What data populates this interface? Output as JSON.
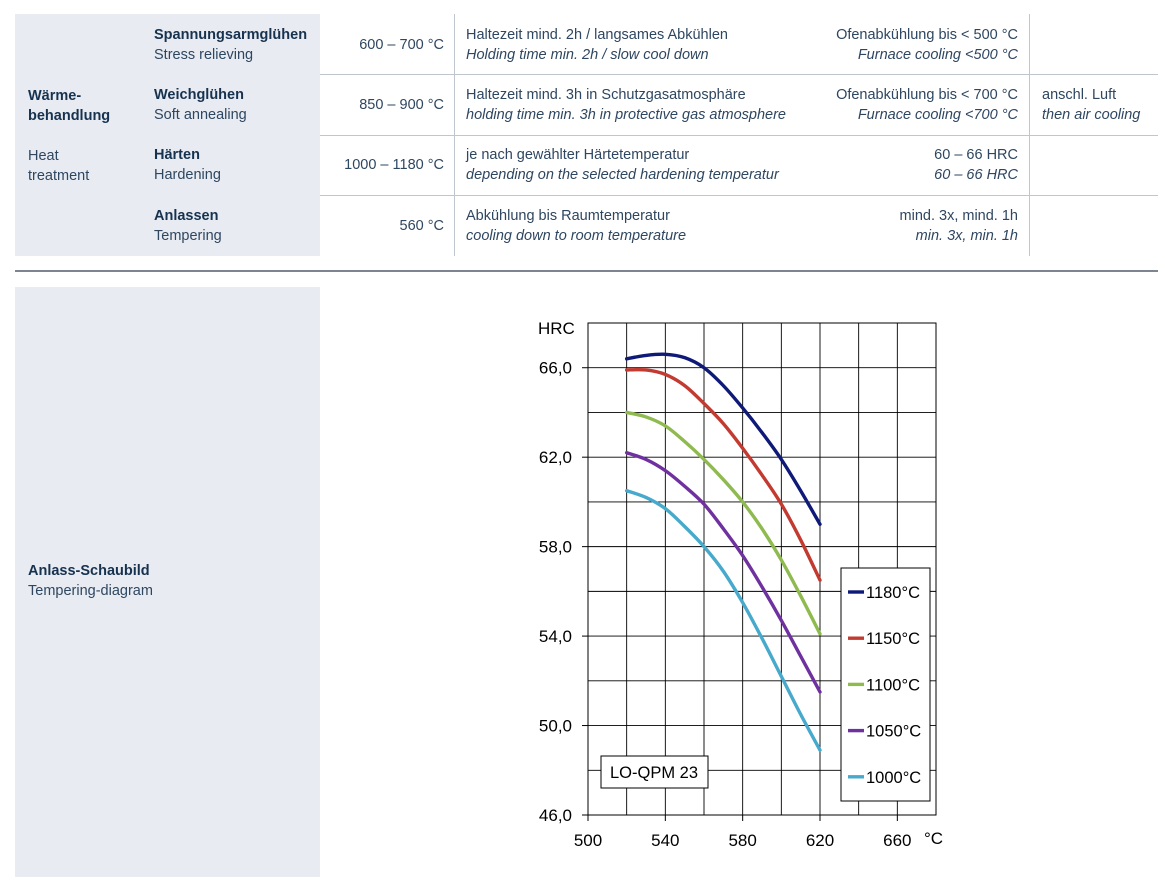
{
  "heat_treatment": {
    "label_de": "Wärme-\nbehandlung",
    "label_de_line1": "Wärme-",
    "label_de_line2": "behandlung",
    "label_en_line1": "Heat",
    "label_en_line2": "treatment",
    "rows": [
      {
        "name_de": "Spannungsarmglühen",
        "name_en": "Stress relieving",
        "temp": "600 – 700 °C",
        "desc_de": "Haltezeit mind. 2h / langsames Abkühlen",
        "desc_en": "Holding time min. 2h / slow cool down",
        "cool_de": "Ofenabkühlung bis < 500 °C",
        "cool_en": "Furnace cooling <500 °C",
        "extra_de": "",
        "extra_en": ""
      },
      {
        "name_de": "Weichglühen",
        "name_en": "Soft annealing",
        "temp": "850 – 900 °C",
        "desc_de": "Haltezeit mind. 3h in Schutzgasatmosphäre",
        "desc_en": "holding time min. 3h in protective gas atmosphere",
        "cool_de": "Ofenabkühlung bis < 700 °C",
        "cool_en": "Furnace cooling <700 °C",
        "extra_de": "anschl. Luft",
        "extra_en": "then air cooling"
      },
      {
        "name_de": "Härten",
        "name_en": "Hardening",
        "temp": "1000 – 1180 °C",
        "desc_de": "je nach gewählter Härtetemperatur",
        "desc_en": "depending on the selected hardening temperatur",
        "cool_de": "60 – 66 HRC",
        "cool_en": "60 – 66 HRC",
        "extra_de": "",
        "extra_en": ""
      },
      {
        "name_de": "Anlassen",
        "name_en": "Tempering",
        "temp": "560 °C",
        "desc_de": "Abkühlung bis Raumtemperatur",
        "desc_en": "cooling down to room temperature",
        "cool_de": "mind. 3x, mind. 1h",
        "cool_en": "min. 3x, min. 1h",
        "extra_de": "",
        "extra_en": ""
      }
    ]
  },
  "tempering_section": {
    "label_de": "Anlass-Schaubild",
    "label_en": "Tempering-diagram"
  },
  "chart_data": {
    "type": "line",
    "ylabel": "HRC",
    "xlabel": "°C",
    "xlim": [
      500,
      680
    ],
    "ylim": [
      46,
      68
    ],
    "x_ticks": [
      500,
      540,
      580,
      620,
      660
    ],
    "y_ticks": [
      46.0,
      50.0,
      54.0,
      58.0,
      62.0,
      66.0
    ],
    "y_tick_labels": [
      "46,0",
      "50,0",
      "54,0",
      "58,0",
      "62,0",
      "66,0"
    ],
    "grid": true,
    "legend_position": "right",
    "annotation": "LO-QPM 23",
    "series": [
      {
        "name": "1180°C",
        "color": "#0f1a78",
        "x": [
          520,
          530,
          540,
          550,
          560,
          570,
          580,
          590,
          600,
          610,
          620
        ],
        "values": [
          66.4,
          66.55,
          66.6,
          66.45,
          66.0,
          65.2,
          64.2,
          63.1,
          61.9,
          60.5,
          59.0
        ]
      },
      {
        "name": "1150°C",
        "color": "#c33a30",
        "x": [
          520,
          530,
          540,
          550,
          560,
          570,
          580,
          590,
          600,
          610,
          620
        ],
        "values": [
          65.9,
          65.9,
          65.7,
          65.2,
          64.4,
          63.5,
          62.4,
          61.2,
          59.9,
          58.3,
          56.5
        ]
      },
      {
        "name": "1100°C",
        "color": "#8fba4f",
        "x": [
          520,
          530,
          540,
          550,
          560,
          570,
          580,
          590,
          600,
          610,
          620
        ],
        "values": [
          64.0,
          63.8,
          63.4,
          62.7,
          61.9,
          61.0,
          60.0,
          58.8,
          57.4,
          55.8,
          54.1
        ]
      },
      {
        "name": "1050°C",
        "color": "#7031a0",
        "x": [
          520,
          530,
          540,
          550,
          560,
          570,
          580,
          590,
          600,
          610,
          620
        ],
        "values": [
          62.2,
          61.9,
          61.4,
          60.7,
          59.9,
          58.8,
          57.6,
          56.2,
          54.7,
          53.1,
          51.5
        ]
      },
      {
        "name": "1000°C",
        "color": "#47a9cc",
        "x": [
          520,
          530,
          540,
          550,
          560,
          570,
          580,
          590,
          600,
          610,
          620
        ],
        "values": [
          60.5,
          60.2,
          59.7,
          58.9,
          58.0,
          56.9,
          55.5,
          53.9,
          52.2,
          50.5,
          48.9
        ]
      }
    ]
  }
}
